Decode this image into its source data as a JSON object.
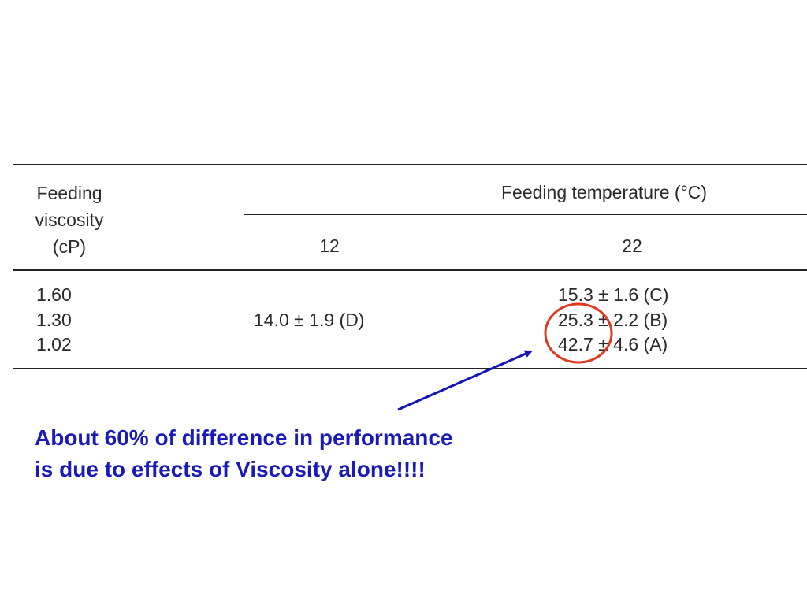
{
  "table": {
    "header": {
      "row_label": [
        "Feeding",
        "viscosity",
        "(cP)"
      ],
      "group_label": "Feeding temperature (°C)",
      "col_12": "12",
      "col_22": "22"
    },
    "viscosities": [
      "1.60",
      "1.30",
      "1.02"
    ],
    "value_12": "14.0 ± 1.9 (D)",
    "values_22": [
      "15.3 ± 1.6 (C)",
      "25.3 ± 2.2 (B)",
      "42.7 ± 4.6 (A)"
    ]
  },
  "annotation": {
    "lines": [
      "About 60% of difference in performance",
      "is due to effects of Viscosity alone!!!!"
    ],
    "circle_color": "#e03a1e",
    "arrow_color": "#1414b4",
    "text_color": "#1a1ab8"
  }
}
